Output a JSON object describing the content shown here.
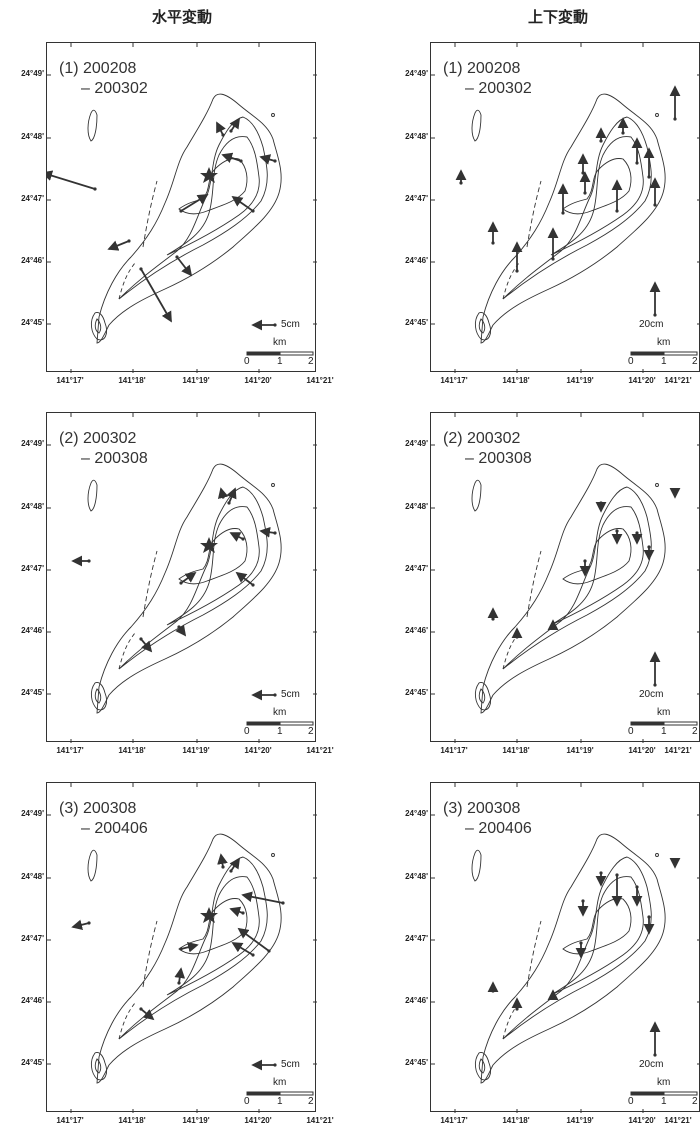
{
  "columns": {
    "left": "水平変動",
    "right": "上下変動"
  },
  "latitudes": [
    "24°49'",
    "24°48'",
    "24°47'",
    "24°46'",
    "24°45'"
  ],
  "longitudes": [
    "141°17'",
    "141°18'",
    "141°19'",
    "141°20'",
    "141°21'"
  ],
  "panels": {
    "h1": {
      "title1": "(1) 200208",
      "title2": "– 200302",
      "vec_label": "5cm",
      "km": "km",
      "s0": "0",
      "s1": "1",
      "s2": "2"
    },
    "v1": {
      "title1": "(1) 200208",
      "title2": "– 200302",
      "vec_label": "20cm",
      "km": "km",
      "s0": "0",
      "s1": "1",
      "s2": "2"
    },
    "h2": {
      "title1": "(2) 200302",
      "title2": "– 200308",
      "vec_label": "5cm",
      "km": "km",
      "s0": "0",
      "s1": "1",
      "s2": "2"
    },
    "v2": {
      "title1": "(2) 200302",
      "title2": "– 200308",
      "vec_label": "20cm",
      "km": "km",
      "s0": "0",
      "s1": "1",
      "s2": "2"
    },
    "h3": {
      "title1": "(3) 200308",
      "title2": "– 200406",
      "vec_label": "5cm",
      "km": "km",
      "s0": "0",
      "s1": "1",
      "s2": "2"
    },
    "v3": {
      "title1": "(3) 200308",
      "title2": "– 200406",
      "vec_label": "20cm",
      "km": "km",
      "s0": "0",
      "s1": "1",
      "s2": "2"
    }
  }
}
